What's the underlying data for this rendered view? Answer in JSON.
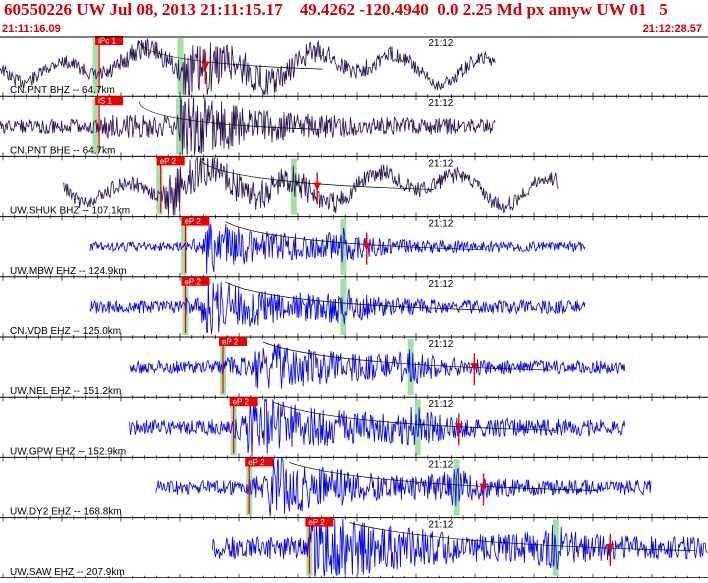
{
  "header": {
    "title": "60550226 UW Jul 08, 2013 21:11:15.17    49.4262 -120.4940  0.0 2.25 Md px amyw UW 01   5",
    "start_time": "21:11:16.09",
    "end_time": "21:12:28.57"
  },
  "colors": {
    "header_text": "#d00000",
    "trace_dark": "#2a1050",
    "trace_blue": "#0000ee",
    "pick_red": "#ee0000",
    "window_green": "#a8dca8",
    "background": "#ffffff"
  },
  "minute_tick_label": "21:12",
  "panels": [
    {
      "label": "CN.PNT BHZ -- 64.7km",
      "pick": "iPc 1",
      "trace": "dark",
      "start": 0.0,
      "end": 0.7,
      "p": 0.14,
      "s": 0.258,
      "arrival": 0.29,
      "green": [
        0.135,
        0.255
      ],
      "amp": 0.35,
      "burst": 0.258,
      "coda": 0.1,
      "low": true
    },
    {
      "label": "CN.PNT BHE -- 64.7km",
      "pick": "iS 1",
      "trace": "dark",
      "start": 0.0,
      "end": 0.7,
      "p": 0.14,
      "s": 0.253,
      "arrival": null,
      "green": [
        0.135,
        0.253
      ],
      "amp": 0.4,
      "burst": 0.253,
      "coda": 0.1,
      "low": false
    },
    {
      "label": "UW.SHUK BHZ -- 107.1km",
      "pick": "eP 2",
      "trace": "dark",
      "start": 0.09,
      "end": 0.79,
      "p": 0.227,
      "s": 0.415,
      "arrival": 0.448,
      "green": [
        0.225,
        0.415
      ],
      "amp": 0.28,
      "burst": 0.235,
      "coda": 0.12,
      "low": true
    },
    {
      "label": "UW.MBW EHZ -- 124.9km",
      "pick": "eP 2",
      "trace": "blue",
      "start": 0.127,
      "end": 0.827,
      "p": 0.262,
      "s": 0.485,
      "arrival": 0.518,
      "green": [
        0.26,
        0.485
      ],
      "amp": 0.35,
      "burst": 0.285,
      "coda": 0.07,
      "low": false
    },
    {
      "label": "CN.VDB EHZ -- 125.0km",
      "pick": "eP 2",
      "trace": "blue",
      "start": 0.127,
      "end": 0.827,
      "p": 0.262,
      "s": 0.485,
      "arrival": null,
      "green": [
        0.262,
        0.485
      ],
      "amp": 0.35,
      "burst": 0.285,
      "coda": 0.09,
      "low": false
    },
    {
      "label": "UW.NEL EHZ -- 151.2km",
      "pick": "eP 2",
      "trace": "blue",
      "start": 0.183,
      "end": 0.883,
      "p": 0.315,
      "s": 0.58,
      "arrival": 0.67,
      "green": [
        0.315,
        0.58
      ],
      "amp": 0.35,
      "burst": 0.36,
      "coda": 0.09,
      "low": false
    },
    {
      "label": "UW.GPW EHZ -- 152.9km",
      "pick": "eP 2",
      "trace": "blue",
      "start": 0.183,
      "end": 0.883,
      "p": 0.33,
      "s": 0.587,
      "arrival": 0.648,
      "green": [
        0.33,
        0.59
      ],
      "amp": 0.42,
      "burst": 0.35,
      "coda": 0.11,
      "low": false
    },
    {
      "label": "UW.DY2 EHZ -- 168.8km",
      "pick": "eP 2",
      "trace": "blue",
      "start": 0.22,
      "end": 0.92,
      "p": 0.352,
      "s": 0.645,
      "arrival": 0.683,
      "green": [
        0.352,
        0.645
      ],
      "amp": 0.38,
      "burst": 0.38,
      "coda": 0.1,
      "low": false
    },
    {
      "label": "UW.SAW EHZ -- 207.9km",
      "pick": "eP 2",
      "trace": "blue",
      "start": 0.3,
      "end": 1.0,
      "p": 0.437,
      "s": 0.785,
      "arrival": 0.862,
      "green": [
        0.437,
        0.785
      ],
      "amp": 0.42,
      "burst": 0.44,
      "coda": 0.16,
      "low": false
    }
  ]
}
